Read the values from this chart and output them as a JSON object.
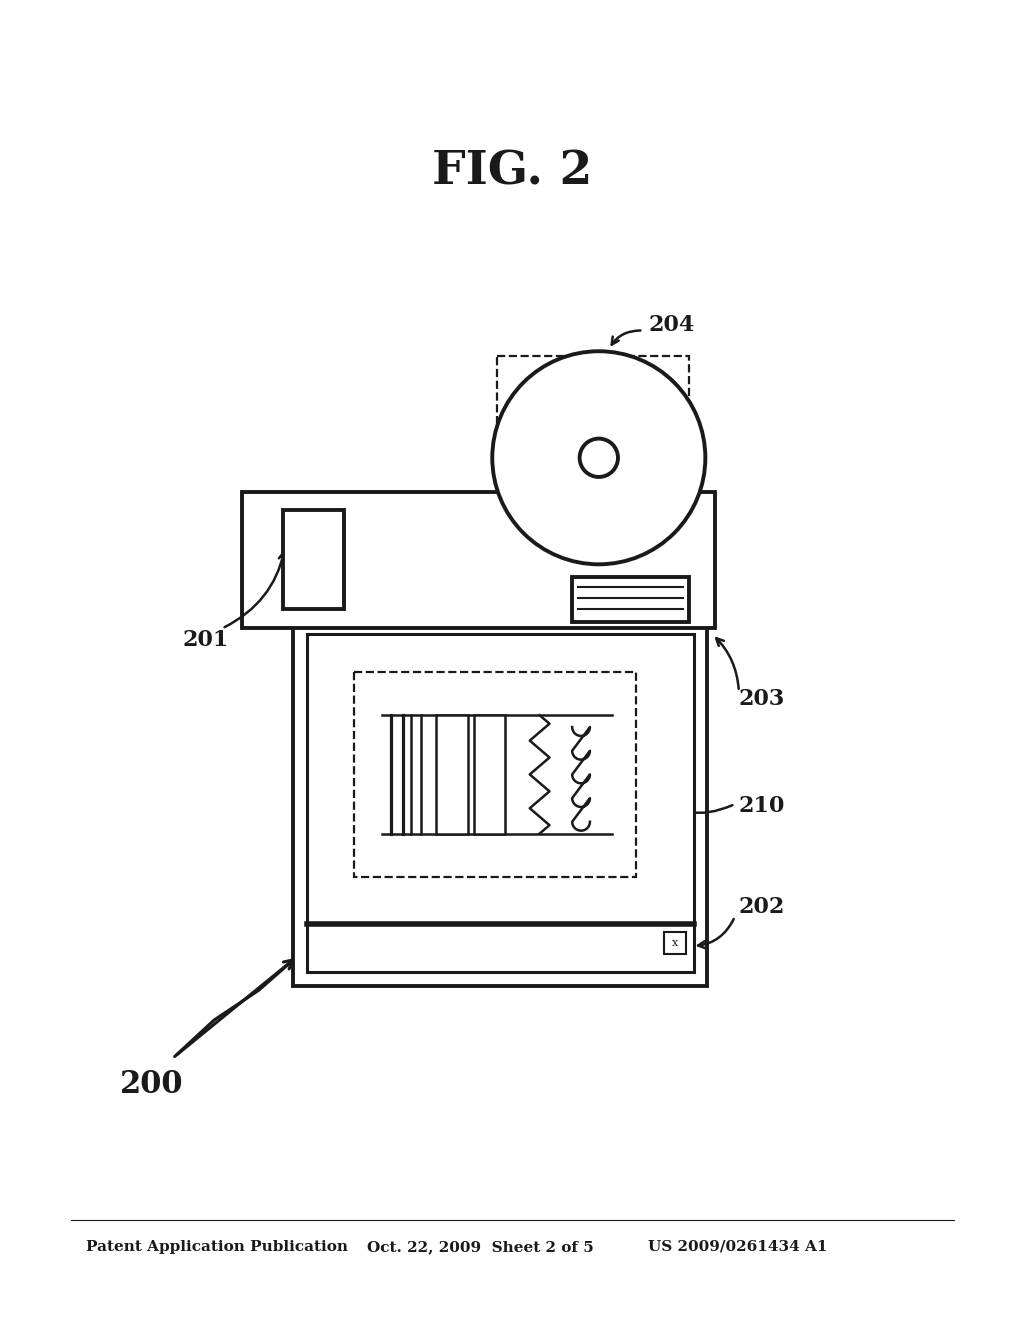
{
  "bg_color": "#ffffff",
  "line_color": "#1a1a1a",
  "header_text1": "Patent Application Publication",
  "header_text2": "Oct. 22, 2009  Sheet 2 of 5",
  "header_text3": "US 2009/0261434 A1",
  "fig_label": "FIG. 2",
  "lw_outer": 2.8,
  "lw_inner": 2.2,
  "lw_circuit": 1.8,
  "lw_dashed": 1.6
}
